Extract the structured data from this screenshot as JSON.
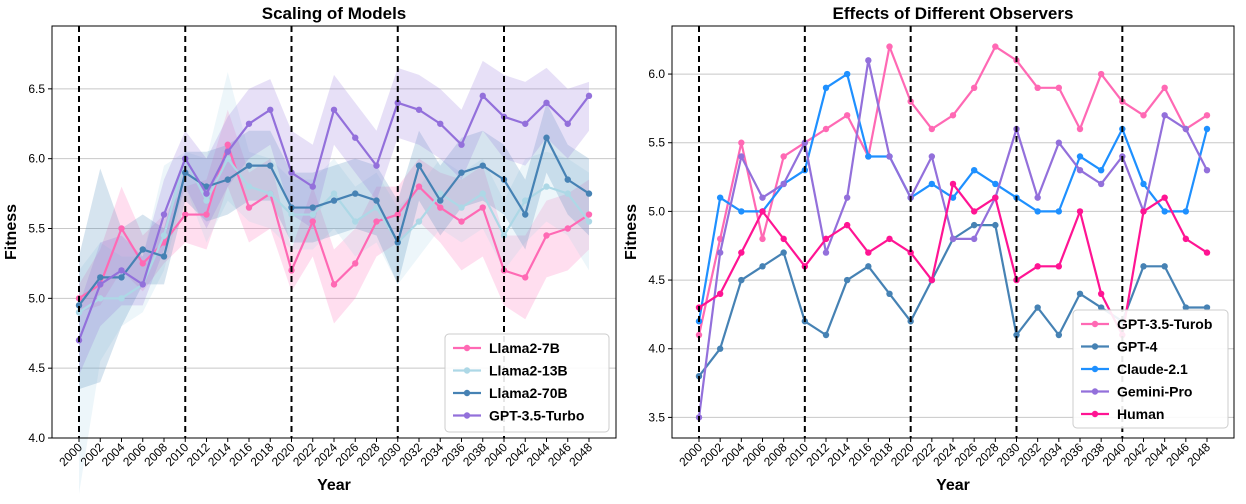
{
  "chart_data": [
    {
      "type": "line",
      "title": "Scaling of Models",
      "xlabel": "Year",
      "ylabel": "Fitness",
      "x": [
        2000,
        2002,
        2004,
        2006,
        2008,
        2010,
        2012,
        2014,
        2016,
        2018,
        2020,
        2022,
        2024,
        2026,
        2028,
        2030,
        2032,
        2034,
        2036,
        2038,
        2040,
        2042,
        2044,
        2046,
        2048
      ],
      "x_tick_labels": [
        "2000",
        "2002",
        "2004",
        "2006",
        "2008",
        "2010",
        "2012",
        "2014",
        "2016",
        "2018",
        "2020",
        "2022",
        "2024",
        "2026",
        "2028",
        "2030",
        "2032",
        "2034",
        "2036",
        "2038",
        "2040",
        "2042",
        "2044",
        "2046",
        "2048"
      ],
      "ylim": [
        4.0,
        6.95
      ],
      "yticks": [
        4.0,
        4.5,
        5.0,
        5.5,
        6.0,
        6.5
      ],
      "y_tick_labels": [
        "4.0",
        "4.5",
        "5.0",
        "5.5",
        "6.0",
        "6.5"
      ],
      "vlines": [
        2000,
        2010,
        2020,
        2030,
        2040
      ],
      "legend_position": "lower-right",
      "series": [
        {
          "name": "Llama2-7B",
          "color": "#ff69b4",
          "values": [
            5.0,
            5.1,
            5.5,
            5.25,
            5.4,
            5.6,
            5.6,
            6.1,
            5.65,
            5.75,
            5.2,
            5.55,
            5.1,
            5.25,
            5.55,
            5.6,
            5.8,
            5.65,
            5.55,
            5.65,
            5.2,
            5.15,
            5.45,
            5.5,
            5.6
          ],
          "lower": [
            4.9,
            4.95,
            5.2,
            5.05,
            5.25,
            5.4,
            5.35,
            5.8,
            5.4,
            5.5,
            5.05,
            5.3,
            4.82,
            5.0,
            5.3,
            5.4,
            5.55,
            5.4,
            5.2,
            5.3,
            4.95,
            4.85,
            5.15,
            5.2,
            5.35
          ],
          "upper": [
            5.1,
            5.35,
            5.8,
            5.45,
            5.6,
            5.8,
            5.85,
            6.35,
            5.9,
            6.0,
            5.35,
            5.8,
            5.35,
            5.5,
            5.8,
            5.8,
            6.0,
            5.9,
            5.85,
            5.95,
            5.45,
            5.45,
            5.7,
            5.75,
            5.85
          ]
        },
        {
          "name": "Llama2-13B",
          "color": "#add8e6",
          "values": [
            4.9,
            5.0,
            5.0,
            5.1,
            5.45,
            6.0,
            5.7,
            6.0,
            5.8,
            5.75,
            5.6,
            5.6,
            5.75,
            5.55,
            5.65,
            5.4,
            5.55,
            5.75,
            5.65,
            5.75,
            5.45,
            5.7,
            5.8,
            5.75,
            5.55
          ],
          "lower": [
            3.6,
            4.55,
            4.8,
            4.9,
            5.2,
            5.8,
            5.4,
            5.7,
            5.55,
            5.5,
            5.35,
            5.35,
            5.5,
            5.3,
            5.4,
            5.1,
            5.3,
            5.5,
            5.4,
            5.5,
            5.2,
            5.4,
            5.55,
            5.45,
            5.2
          ],
          "upper": [
            5.2,
            5.4,
            5.3,
            5.3,
            5.95,
            6.05,
            6.0,
            6.62,
            6.05,
            6.0,
            5.85,
            5.85,
            6.0,
            5.8,
            5.9,
            5.65,
            5.8,
            6.0,
            5.9,
            6.0,
            5.7,
            6.0,
            6.05,
            6.0,
            5.9
          ]
        },
        {
          "name": "Llama2-70B",
          "color": "#4682b4",
          "values": [
            4.95,
            5.15,
            5.15,
            5.35,
            5.3,
            5.9,
            5.8,
            5.85,
            5.95,
            5.95,
            5.65,
            5.65,
            5.7,
            5.75,
            5.7,
            5.4,
            5.95,
            5.7,
            5.9,
            5.95,
            5.85,
            5.6,
            6.15,
            5.85,
            5.75
          ],
          "lower": [
            4.35,
            4.4,
            4.8,
            5.1,
            5.1,
            5.7,
            5.55,
            5.6,
            5.7,
            5.7,
            5.4,
            5.4,
            5.45,
            5.5,
            5.45,
            5.1,
            5.7,
            5.45,
            5.65,
            5.7,
            5.6,
            5.35,
            5.9,
            5.6,
            5.45
          ],
          "upper": [
            5.3,
            5.93,
            5.5,
            5.6,
            5.5,
            6.05,
            6.05,
            6.1,
            6.2,
            6.2,
            5.9,
            5.9,
            5.95,
            6.0,
            5.95,
            5.7,
            6.2,
            5.95,
            6.15,
            6.2,
            6.1,
            5.85,
            6.4,
            6.1,
            6.0
          ]
        },
        {
          "name": "GPT-3.5-Turbo",
          "color": "#9370db",
          "values": [
            4.7,
            5.1,
            5.2,
            5.1,
            5.6,
            6.0,
            5.75,
            6.05,
            6.25,
            6.35,
            5.9,
            5.8,
            6.35,
            6.15,
            5.95,
            6.4,
            6.35,
            6.25,
            6.1,
            6.45,
            6.3,
            6.25,
            6.4,
            6.25,
            6.45
          ],
          "lower": [
            4.45,
            4.8,
            4.95,
            4.95,
            5.35,
            5.8,
            5.5,
            5.8,
            6.0,
            6.1,
            5.6,
            5.5,
            6.1,
            5.9,
            5.7,
            6.15,
            6.1,
            6.0,
            5.85,
            6.2,
            6.0,
            5.95,
            6.15,
            6.0,
            6.2
          ],
          "upper": [
            4.95,
            5.4,
            5.45,
            5.3,
            5.85,
            6.2,
            6.0,
            6.3,
            6.5,
            6.57,
            6.2,
            6.1,
            6.6,
            6.4,
            6.2,
            6.65,
            6.6,
            6.5,
            6.35,
            6.7,
            6.6,
            6.55,
            6.65,
            6.5,
            6.55
          ]
        }
      ]
    },
    {
      "type": "line",
      "title": "Effects of Different Observers",
      "xlabel": "Year",
      "ylabel": "Fitness",
      "x": [
        2000,
        2002,
        2004,
        2006,
        2008,
        2010,
        2012,
        2014,
        2016,
        2018,
        2020,
        2022,
        2024,
        2026,
        2028,
        2030,
        2032,
        2034,
        2036,
        2038,
        2040,
        2042,
        2044,
        2046,
        2048
      ],
      "x_tick_labels": [
        "2000",
        "2002",
        "2004",
        "2006",
        "2008",
        "2010",
        "2012",
        "2014",
        "2016",
        "2018",
        "2020",
        "2022",
        "2024",
        "2026",
        "2028",
        "2030",
        "2032",
        "2034",
        "2036",
        "2038",
        "2040",
        "2042",
        "2044",
        "2046",
        "2048"
      ],
      "ylim": [
        3.35,
        6.35
      ],
      "yticks": [
        3.5,
        4.0,
        4.5,
        5.0,
        5.5,
        6.0
      ],
      "y_tick_labels": [
        "3.5",
        "4.0",
        "4.5",
        "5.0",
        "5.5",
        "6.0"
      ],
      "vlines": [
        2000,
        2010,
        2020,
        2030,
        2040
      ],
      "legend_position": "lower-right",
      "series": [
        {
          "name": "GPT-3.5-Turob",
          "color": "#ff69b4",
          "values": [
            4.1,
            4.8,
            5.5,
            4.8,
            5.4,
            5.5,
            5.6,
            5.7,
            5.4,
            6.2,
            5.8,
            5.6,
            5.7,
            5.9,
            6.2,
            6.1,
            5.9,
            5.9,
            5.6,
            6.0,
            5.8,
            5.7,
            5.9,
            5.6,
            5.7
          ]
        },
        {
          "name": "GPT-4",
          "color": "#4682b4",
          "values": [
            3.8,
            4.0,
            4.5,
            4.6,
            4.7,
            4.2,
            4.1,
            4.5,
            4.6,
            4.4,
            4.2,
            4.5,
            4.8,
            4.9,
            4.9,
            4.1,
            4.3,
            4.1,
            4.4,
            4.3,
            4.2,
            4.6,
            4.6,
            4.3,
            4.3
          ]
        },
        {
          "name": "Claude-2.1",
          "color": "#1e90ff",
          "values": [
            4.2,
            5.1,
            5.0,
            5.0,
            5.2,
            5.3,
            5.9,
            6.0,
            5.4,
            5.4,
            5.1,
            5.2,
            5.1,
            5.3,
            5.2,
            5.1,
            5.0,
            5.0,
            5.4,
            5.3,
            5.6,
            5.2,
            5.0,
            5.0,
            5.6
          ]
        },
        {
          "name": "Gemini-Pro",
          "color": "#9370db",
          "values": [
            3.5,
            4.7,
            5.4,
            5.1,
            5.2,
            5.5,
            4.7,
            5.1,
            6.1,
            5.4,
            5.1,
            5.4,
            4.8,
            4.8,
            5.1,
            5.6,
            5.1,
            5.5,
            5.3,
            5.2,
            5.4,
            5.0,
            5.7,
            5.6,
            5.3
          ]
        },
        {
          "name": "Human",
          "color": "#ff1493",
          "values": [
            4.3,
            4.4,
            4.7,
            5.0,
            4.8,
            4.6,
            4.8,
            4.9,
            4.7,
            4.8,
            4.7,
            4.5,
            5.2,
            5.0,
            5.1,
            4.5,
            4.6,
            4.6,
            5.0,
            4.4,
            4.1,
            5.0,
            5.1,
            4.8,
            4.7
          ]
        }
      ]
    }
  ]
}
